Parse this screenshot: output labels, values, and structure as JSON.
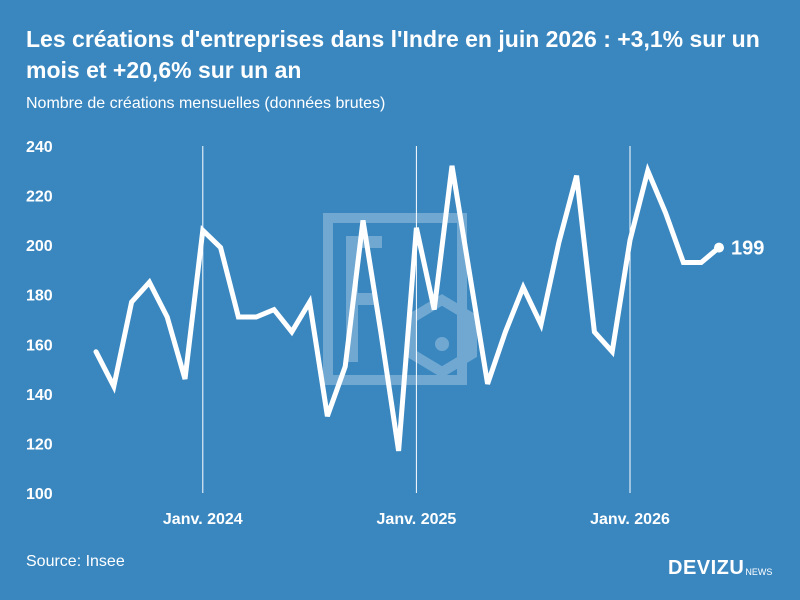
{
  "header": {
    "title": "Les créations d'entreprises dans l'Indre en juin 2026 : +3,1% sur un mois et +20,6% sur un an",
    "subtitle": "Nombre de créations mensuelles (données brutes)"
  },
  "footer": {
    "source": "Source: Insee",
    "brand_main": "DEVIZU",
    "brand_suffix": "NEWS"
  },
  "colors": {
    "background": "#3a87c0",
    "line": "#ffffff",
    "watermark": "#5b9dcd"
  },
  "chart_data": {
    "type": "line",
    "title": "Les créations d'entreprises dans l'Indre en juin 2026 : +3,1% sur un mois et +20,6% sur un an",
    "subtitle": "Nombre de créations mensuelles (données brutes)",
    "ylim": [
      100,
      240
    ],
    "yticks": [
      100,
      120,
      140,
      160,
      180,
      200,
      220,
      240
    ],
    "grid": false,
    "x_markers": [
      {
        "label": "Janv. 2024",
        "date": "2024-01"
      },
      {
        "label": "Janv. 2025",
        "date": "2025-01"
      },
      {
        "label": "Janv. 2026",
        "date": "2026-01"
      }
    ],
    "series": [
      {
        "x": [
          "2023-07",
          "2023-08",
          "2023-09",
          "2023-10",
          "2023-11",
          "2023-12",
          "2024-01",
          "2024-02",
          "2024-03",
          "2024-04",
          "2024-05",
          "2024-06",
          "2024-07",
          "2024-08",
          "2024-09",
          "2024-10",
          "2024-11",
          "2024-12",
          "2025-01",
          "2025-02",
          "2025-03",
          "2025-04",
          "2025-05",
          "2025-06",
          "2025-07",
          "2025-08",
          "2025-09",
          "2025-10",
          "2025-11",
          "2025-12",
          "2026-01",
          "2026-02",
          "2026-03",
          "2026-04",
          "2026-05",
          "2026-06"
        ],
        "values": [
          157,
          143,
          177,
          185,
          171,
          146,
          206,
          199,
          171,
          171,
          174,
          165,
          177,
          131,
          151,
          210,
          165,
          117,
          207,
          174,
          232,
          188,
          144,
          165,
          183,
          168,
          201,
          228,
          165,
          157,
          202,
          230,
          213,
          193,
          193,
          199
        ]
      }
    ],
    "end_label": "199"
  }
}
